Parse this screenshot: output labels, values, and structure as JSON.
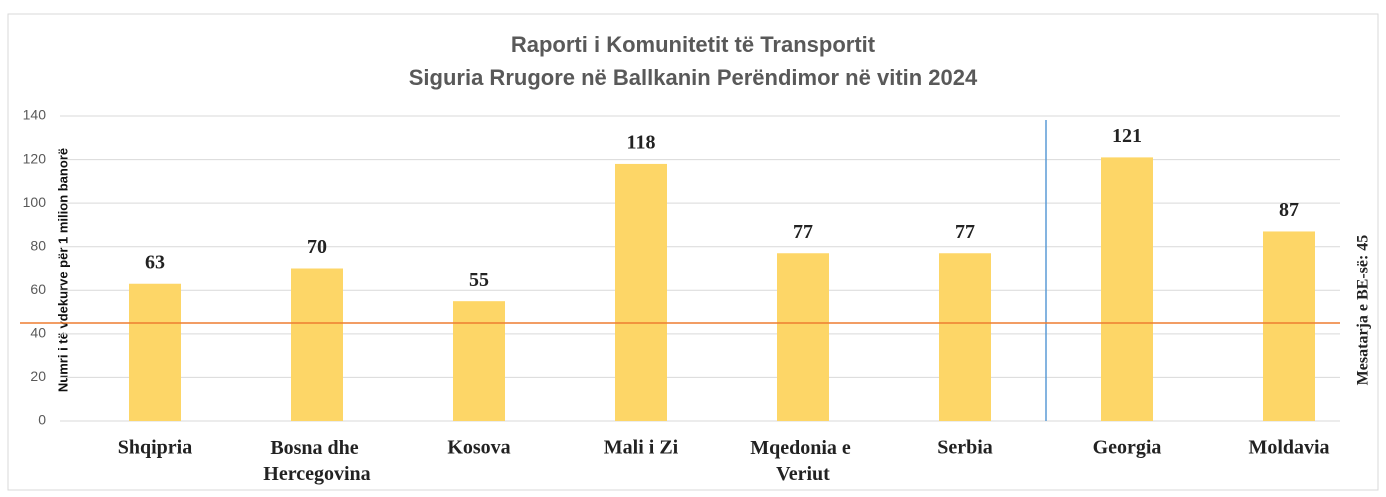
{
  "chart_data": {
    "type": "bar",
    "title": "Raporti i Komunitetit të Transportit",
    "subtitle": "Siguria Rrugore në Ballkanin Perëndimor në vitin 2024",
    "y_axis_label": "Numri i të vdekurve për 1 milion banorë",
    "categories": [
      "Shqipria",
      "Bosna dhe Hercegovina",
      "Kosova",
      "Mali i Zi",
      "Mqedonia e Veriut",
      "Serbia",
      "Georgia",
      "Moldavia"
    ],
    "values": [
      63,
      70,
      55,
      118,
      77,
      77,
      121,
      87
    ],
    "color": "#fdd667",
    "ylim": [
      0,
      140
    ],
    "yticks": [
      0,
      20,
      40,
      60,
      80,
      100,
      120,
      140
    ],
    "grid": true,
    "reference_line": {
      "value": 45,
      "label": "Mesatarja e BE-së: 45",
      "color": "#ed7d31"
    }
  }
}
